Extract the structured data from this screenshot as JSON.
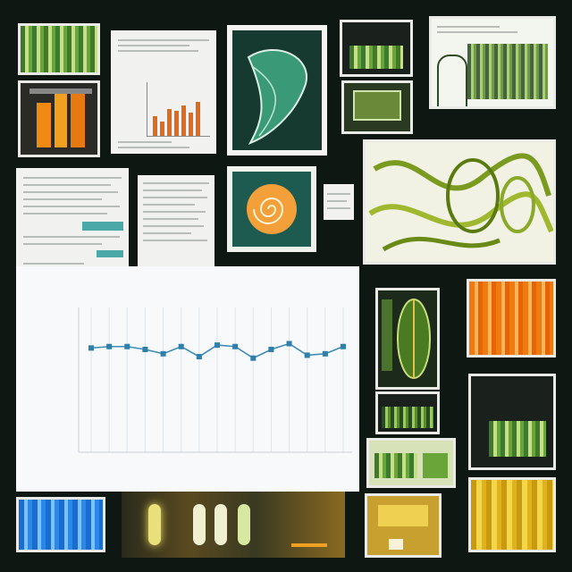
{
  "page": {
    "background": "#0e1712"
  },
  "colors": {
    "line": "#3d8bb6",
    "marker": "#2e7fa9",
    "grid": "#dde5ea",
    "green": "#7fb340",
    "orange": "#f07a10",
    "yellow": "#f2c22a",
    "blue": "#2b88e6"
  },
  "tiles": [
    {
      "name": "green-bars-thumb",
      "kind": "stripes-green"
    },
    {
      "name": "orange-bar-chart-thumb",
      "kind": "orange-bars"
    },
    {
      "name": "document-with-bar-chart",
      "kind": "paper"
    },
    {
      "name": "leaf-card",
      "kind": "illustration"
    },
    {
      "name": "dark-green-bars-thumb",
      "kind": "stripes-green"
    },
    {
      "name": "framed-green-photo",
      "kind": "illustration"
    },
    {
      "name": "sketch-plant-panel",
      "kind": "illustration"
    },
    {
      "name": "text-document-left",
      "kind": "paper"
    },
    {
      "name": "text-document-mid",
      "kind": "paper"
    },
    {
      "name": "orange-spiral-card",
      "kind": "illustration"
    },
    {
      "name": "small-paper-card",
      "kind": "paper"
    },
    {
      "name": "green-vine-panel",
      "kind": "illustration"
    },
    {
      "name": "main-line-chart",
      "kind": "chart"
    },
    {
      "name": "leaf-board-thumb",
      "kind": "illustration"
    },
    {
      "name": "orange-drip-thumb",
      "kind": "stripes-orange"
    },
    {
      "name": "green-grass-thumb",
      "kind": "stripes-grass"
    },
    {
      "name": "green-crate-thumb",
      "kind": "stripes-green"
    },
    {
      "name": "dark-grass-thumb",
      "kind": "stripes-grass"
    },
    {
      "name": "blue-stripes-thumb",
      "kind": "stripes-blue"
    },
    {
      "name": "glowing-tubes-strip",
      "kind": "illustration"
    },
    {
      "name": "yellow-card-thumb",
      "kind": "illustration"
    },
    {
      "name": "yellow-drip-thumb",
      "kind": "stripes-yellow"
    }
  ],
  "chart_data": {
    "type": "line",
    "title": "",
    "xlabel": "",
    "ylabel": "",
    "x": [
      1,
      2,
      3,
      4,
      5,
      6,
      7,
      8,
      9,
      10,
      11,
      12,
      13,
      14,
      15
    ],
    "series": [
      {
        "values": [
          0.72,
          0.73,
          0.73,
          0.71,
          0.68,
          0.73,
          0.66,
          0.74,
          0.73,
          0.65,
          0.71,
          0.75,
          0.67,
          0.68,
          0.73
        ]
      }
    ],
    "ylim": [
      0,
      1
    ],
    "grid": true
  }
}
